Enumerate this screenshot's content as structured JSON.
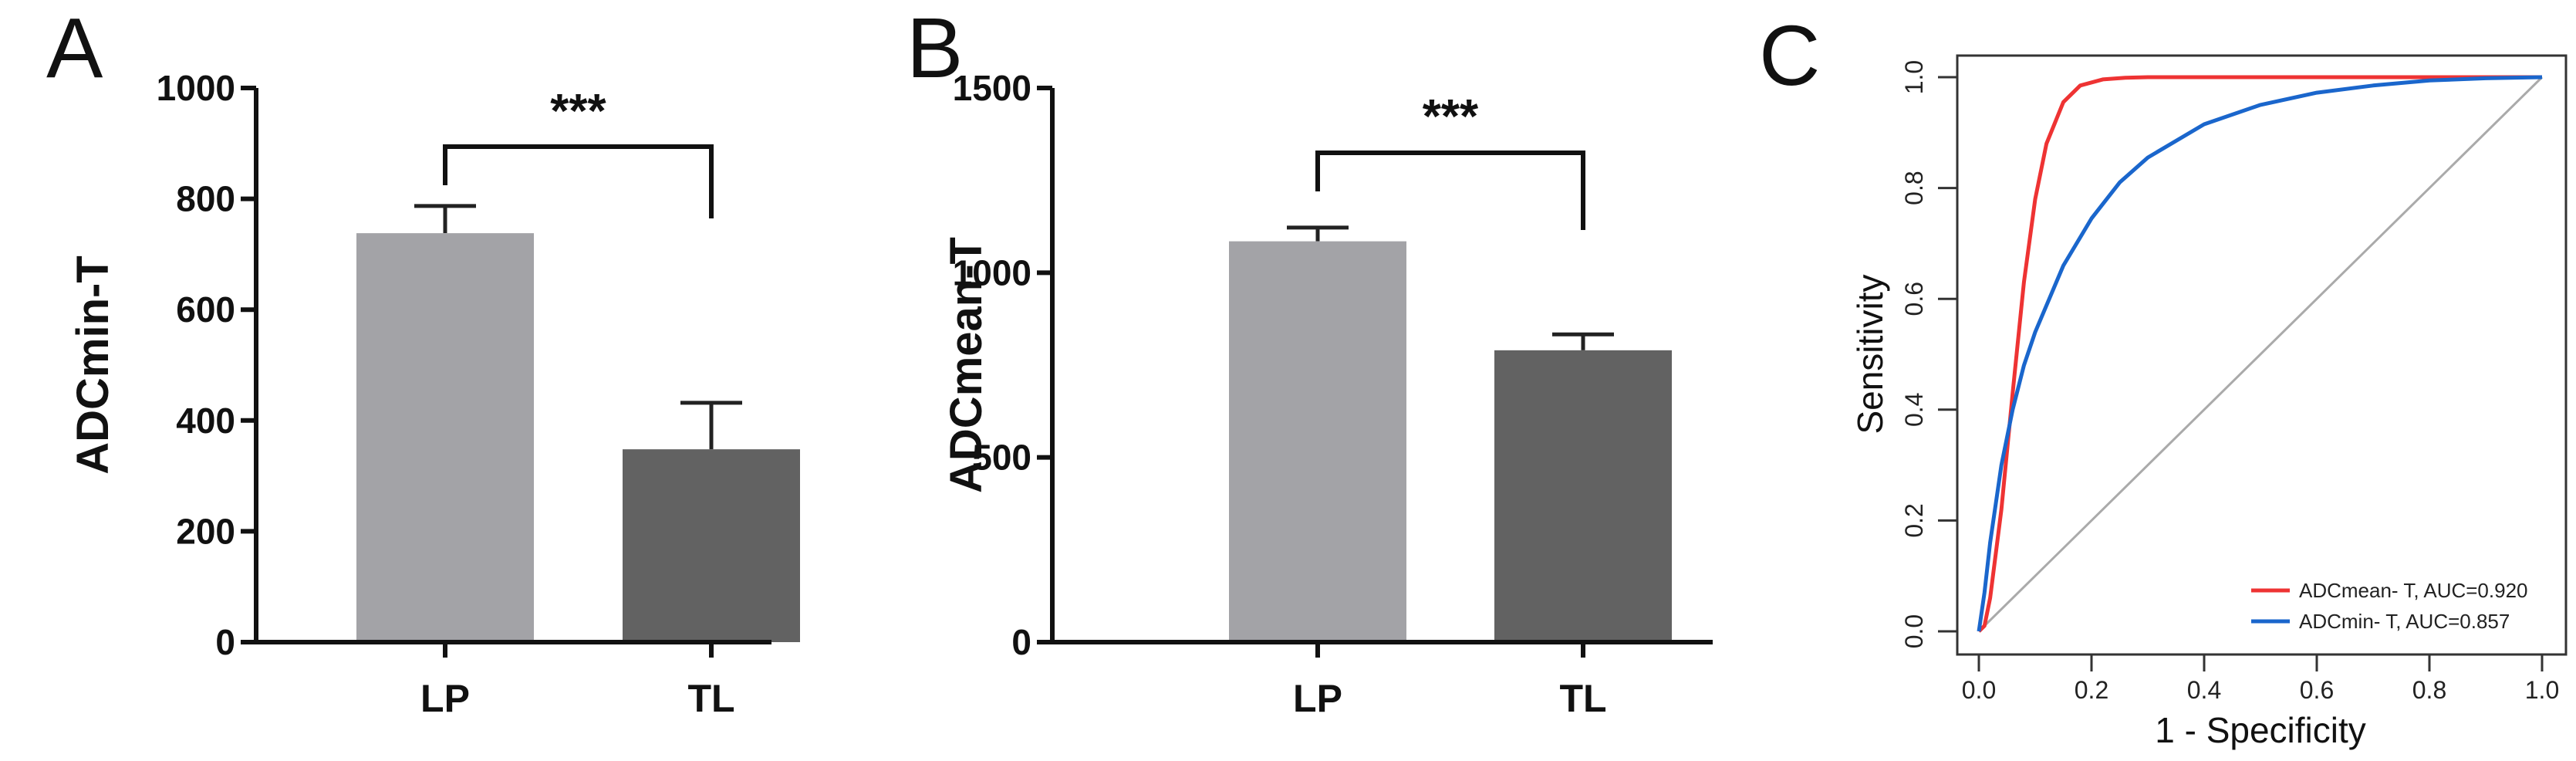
{
  "chart_data": [
    {
      "panel_label": "A",
      "type": "bar",
      "categories": [
        "LP",
        "TL"
      ],
      "values": [
        738,
        348
      ],
      "error_upper": [
        787,
        432
      ],
      "ylabel": "ADCmin-T",
      "ylim": [
        0,
        1000
      ],
      "yticks": [
        "0",
        "200",
        "400",
        "600",
        "800",
        "1000"
      ],
      "significance": "***",
      "colors": [
        "#a3a3a7",
        "#626262"
      ]
    },
    {
      "panel_label": "B",
      "type": "bar",
      "categories": [
        "LP",
        "TL"
      ],
      "values": [
        1085,
        790
      ],
      "error_upper": [
        1122,
        833
      ],
      "ylabel": "ADCmean-T",
      "ylim": [
        0,
        1500
      ],
      "yticks": [
        "0",
        "500",
        "1000",
        "1500"
      ],
      "significance": "***",
      "colors": [
        "#a3a3a7",
        "#626262"
      ]
    },
    {
      "panel_label": "C",
      "type": "line",
      "xlabel": "1 -  Specificity",
      "ylabel": "Sensitivity",
      "xlim": [
        0,
        1
      ],
      "ylim": [
        0,
        1
      ],
      "xticks": [
        "0.0",
        "0.2",
        "0.4",
        "0.6",
        "0.8",
        "1.0"
      ],
      "yticks": [
        "0.0",
        "0.2",
        "0.4",
        "0.6",
        "0.8",
        "1.0"
      ],
      "legend_position": "bottom-right",
      "series": [
        {
          "name": "ADCmean- T, AUC=0.920",
          "color": "#ee3333",
          "x": [
            0,
            0.01,
            0.02,
            0.04,
            0.06,
            0.08,
            0.1,
            0.12,
            0.15,
            0.18,
            0.22,
            0.26,
            0.3,
            0.4,
            0.6,
            0.8,
            1.0
          ],
          "y": [
            0,
            0.01,
            0.06,
            0.22,
            0.43,
            0.63,
            0.78,
            0.88,
            0.955,
            0.985,
            0.996,
            0.999,
            1.0,
            1.0,
            1.0,
            1.0,
            1.0
          ]
        },
        {
          "name": "ADCmin- T, AUC=0.857",
          "color": "#1a66cc",
          "x": [
            0,
            0.01,
            0.02,
            0.04,
            0.06,
            0.08,
            0.1,
            0.15,
            0.2,
            0.25,
            0.3,
            0.4,
            0.5,
            0.6,
            0.7,
            0.8,
            0.9,
            1.0
          ],
          "y": [
            0,
            0.07,
            0.16,
            0.3,
            0.4,
            0.48,
            0.54,
            0.66,
            0.745,
            0.81,
            0.855,
            0.915,
            0.95,
            0.972,
            0.985,
            0.994,
            0.998,
            1.0
          ]
        }
      ],
      "reference_line": true
    }
  ]
}
